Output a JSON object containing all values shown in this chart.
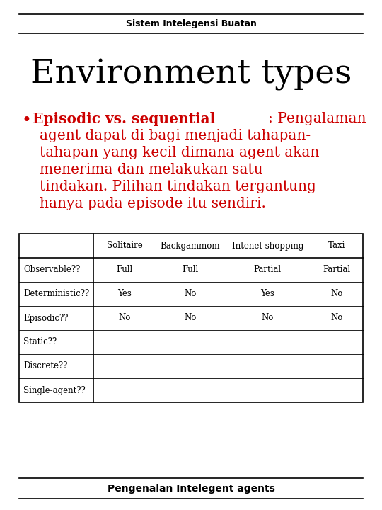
{
  "header": "Sistem Intelegensi Buatan",
  "title": "Environment types",
  "footer": "Pengenalan Intelegent agents",
  "bullet_bold": "Episodic vs. sequential",
  "bullet_rest": ": Pengalaman",
  "text_lines": [
    "agent dapat di bagi menjadi tahapan-",
    "tahapan yang kecil dimana agent akan",
    "menerima dan melakukan satu",
    "tindakan. Pilihan tindakan tergantung",
    "hanya pada episode itu sendiri."
  ],
  "table_headers": [
    "",
    "Solitaire",
    "Backgammom",
    "Intenet shopping",
    "Taxi"
  ],
  "table_rows": [
    [
      "Observable??",
      "Full",
      "Full",
      "Partial",
      "Partial"
    ],
    [
      "Deterministic??",
      "Yes",
      "No",
      "Yes",
      "No"
    ],
    [
      "Episodic??",
      "No",
      "No",
      "No",
      "No"
    ],
    [
      "Static??",
      "",
      "",
      "",
      ""
    ],
    [
      "Discrete??",
      "",
      "",
      "",
      ""
    ],
    [
      "Single-agent??",
      "",
      "",
      "",
      ""
    ]
  ],
  "bg_color": "#ffffff",
  "title_color": "#000000",
  "header_color": "#000000",
  "bullet_color": "#cc0000",
  "table_text_color": "#000000",
  "line_color": "#000000",
  "footer_color": "#000000",
  "header_fontsize": 9,
  "title_fontsize": 34,
  "bullet_fontsize": 14.5,
  "table_header_fontsize": 8.5,
  "table_cell_fontsize": 8.5,
  "footer_fontsize": 10
}
